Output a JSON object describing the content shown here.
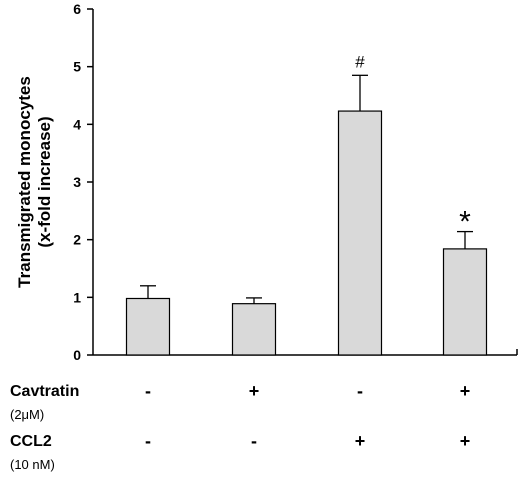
{
  "chart_data": {
    "type": "bar",
    "categories": [
      "Cavtratin - / CCL2 -",
      "Cavtratin + / CCL2 -",
      "Cavtratin - / CCL2 +",
      "Cavtratin + / CCL2 +"
    ],
    "values": [
      0.98,
      0.89,
      4.23,
      1.84
    ],
    "errors": [
      0.22,
      0.1,
      0.62,
      0.3
    ],
    "annotations": [
      "",
      "",
      "#",
      "*"
    ],
    "title": "",
    "ylabel_lines": [
      "Transmigrated monocytes",
      "(x-fold increase)"
    ],
    "ylim": [
      0,
      6
    ],
    "yticks": [
      0,
      1,
      2,
      3,
      4,
      5,
      6
    ],
    "bar_color": "#d9d9d9",
    "grid": false
  },
  "conditions": [
    {
      "label": "Cavtratin",
      "sublabel": "(2μM)",
      "signs": [
        "-",
        "+",
        "-",
        "+"
      ]
    },
    {
      "label": "CCL2",
      "sublabel": "(10 nM)",
      "signs": [
        "-",
        "-",
        "+",
        "+"
      ]
    }
  ]
}
